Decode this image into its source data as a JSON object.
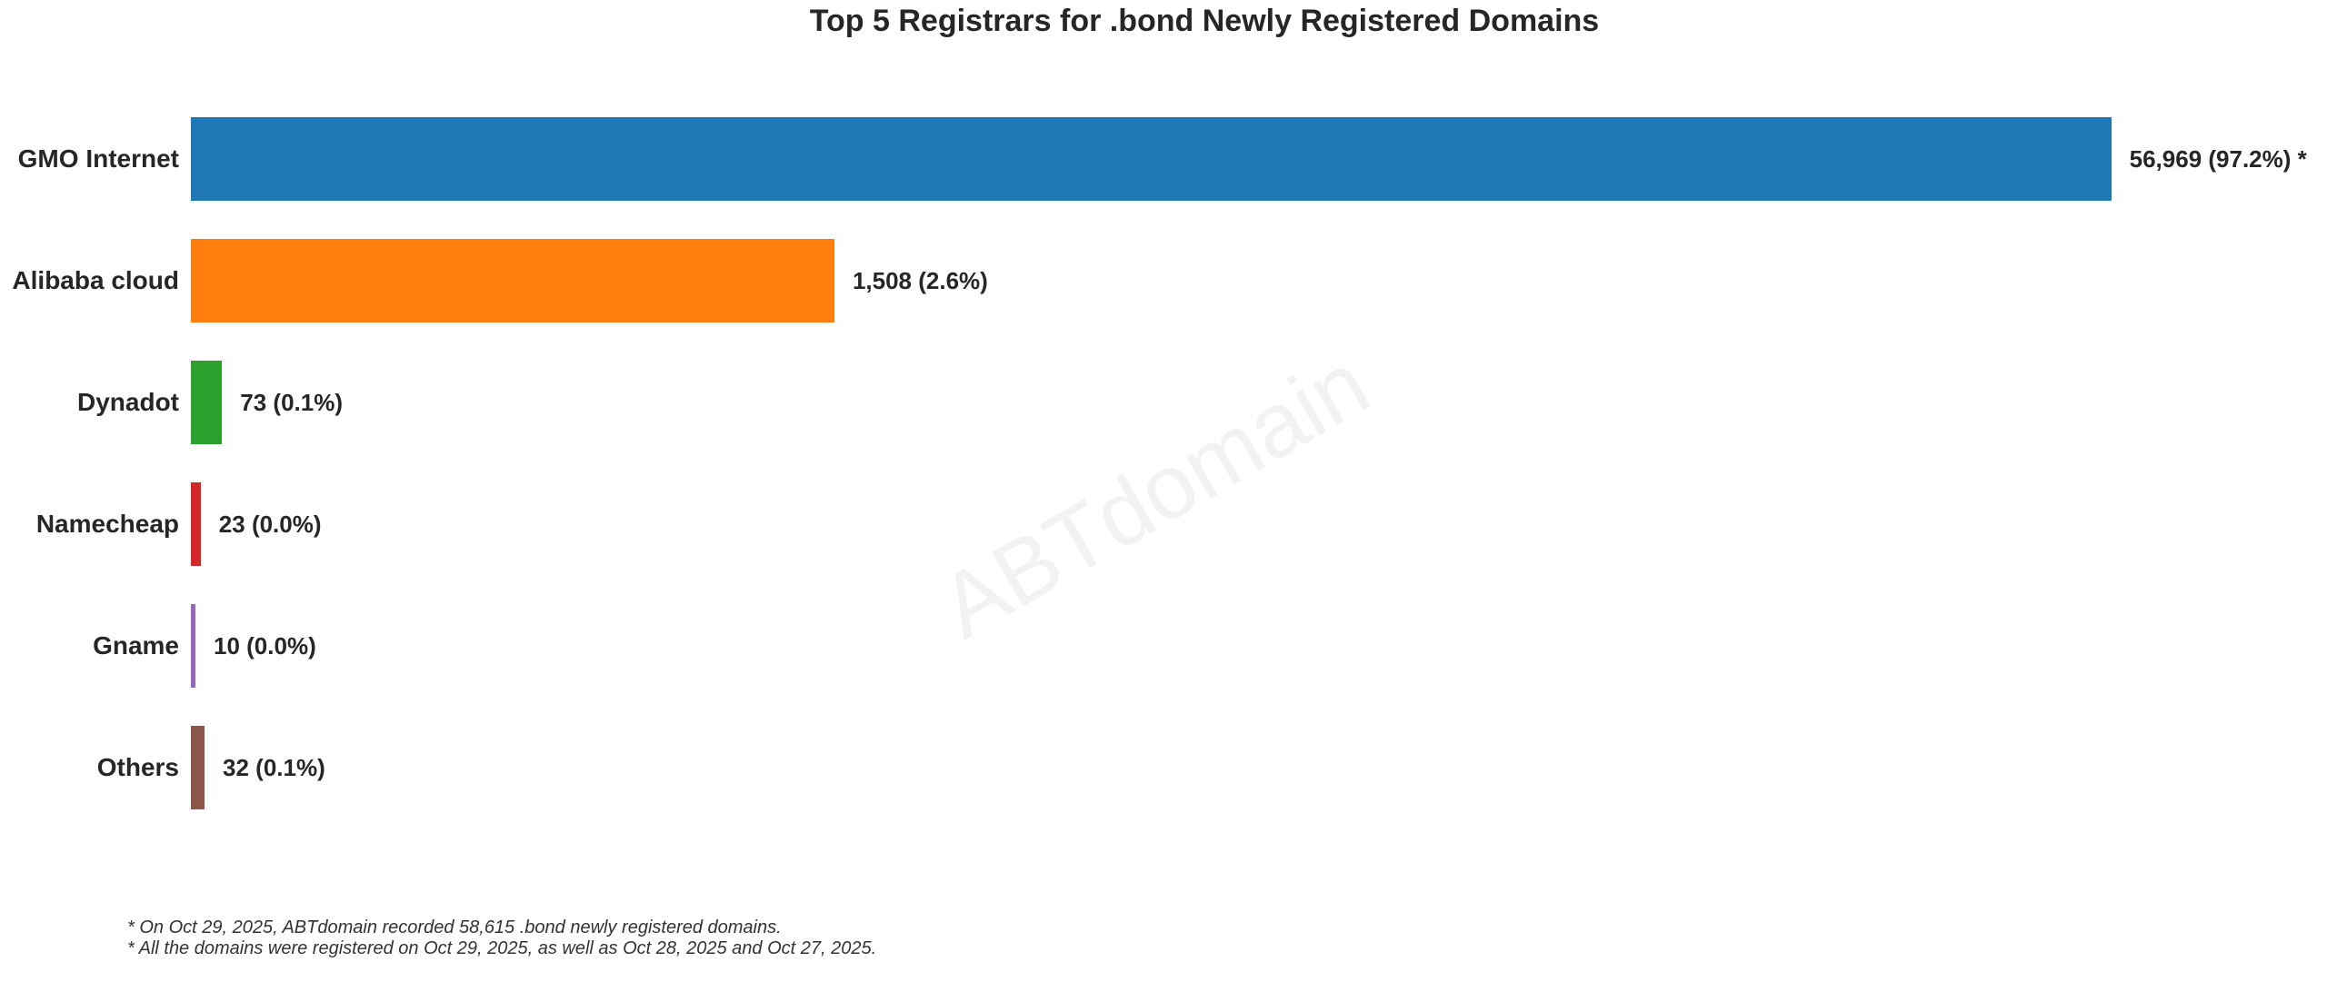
{
  "watermark": "ABTdomain",
  "chart_data": {
    "type": "bar",
    "orientation": "horizontal",
    "title": "Top 5 Registrars for .bond Newly Registered Domains",
    "categories": [
      "GMO Internet",
      "Alibaba cloud",
      "Dynadot",
      "Namecheap",
      "Gname",
      "Others"
    ],
    "values": [
      56969,
      1508,
      73,
      23,
      10,
      32
    ],
    "percents": [
      97.2,
      2.6,
      0.1,
      0.0,
      0.0,
      0.1
    ],
    "value_labels": [
      "56,969 (97.2%) *",
      "1,508 (2.6%)",
      "73 (0.1%)",
      "23 (0.0%)",
      "10 (0.0%)",
      "32 (0.1%)"
    ],
    "colors": [
      "#1f77b4",
      "#ff7f0e",
      "#2ca02c",
      "#d62728",
      "#9467bd",
      "#8c564b"
    ],
    "xlabel": "",
    "ylabel": "",
    "xlim": [
      0,
      4750
    ],
    "display_cap": 4500,
    "grid": false,
    "legend": false,
    "note": "GMO Internet bar is clipped at the axis maximum; true value marked with *"
  },
  "footnotes": [
    "* On Oct 29, 2025, ABTdomain recorded 58,615 .bond newly registered domains.",
    "* All the domains were registered on Oct 29, 2025, as well as Oct 28, 2025 and Oct 27, 2025."
  ]
}
